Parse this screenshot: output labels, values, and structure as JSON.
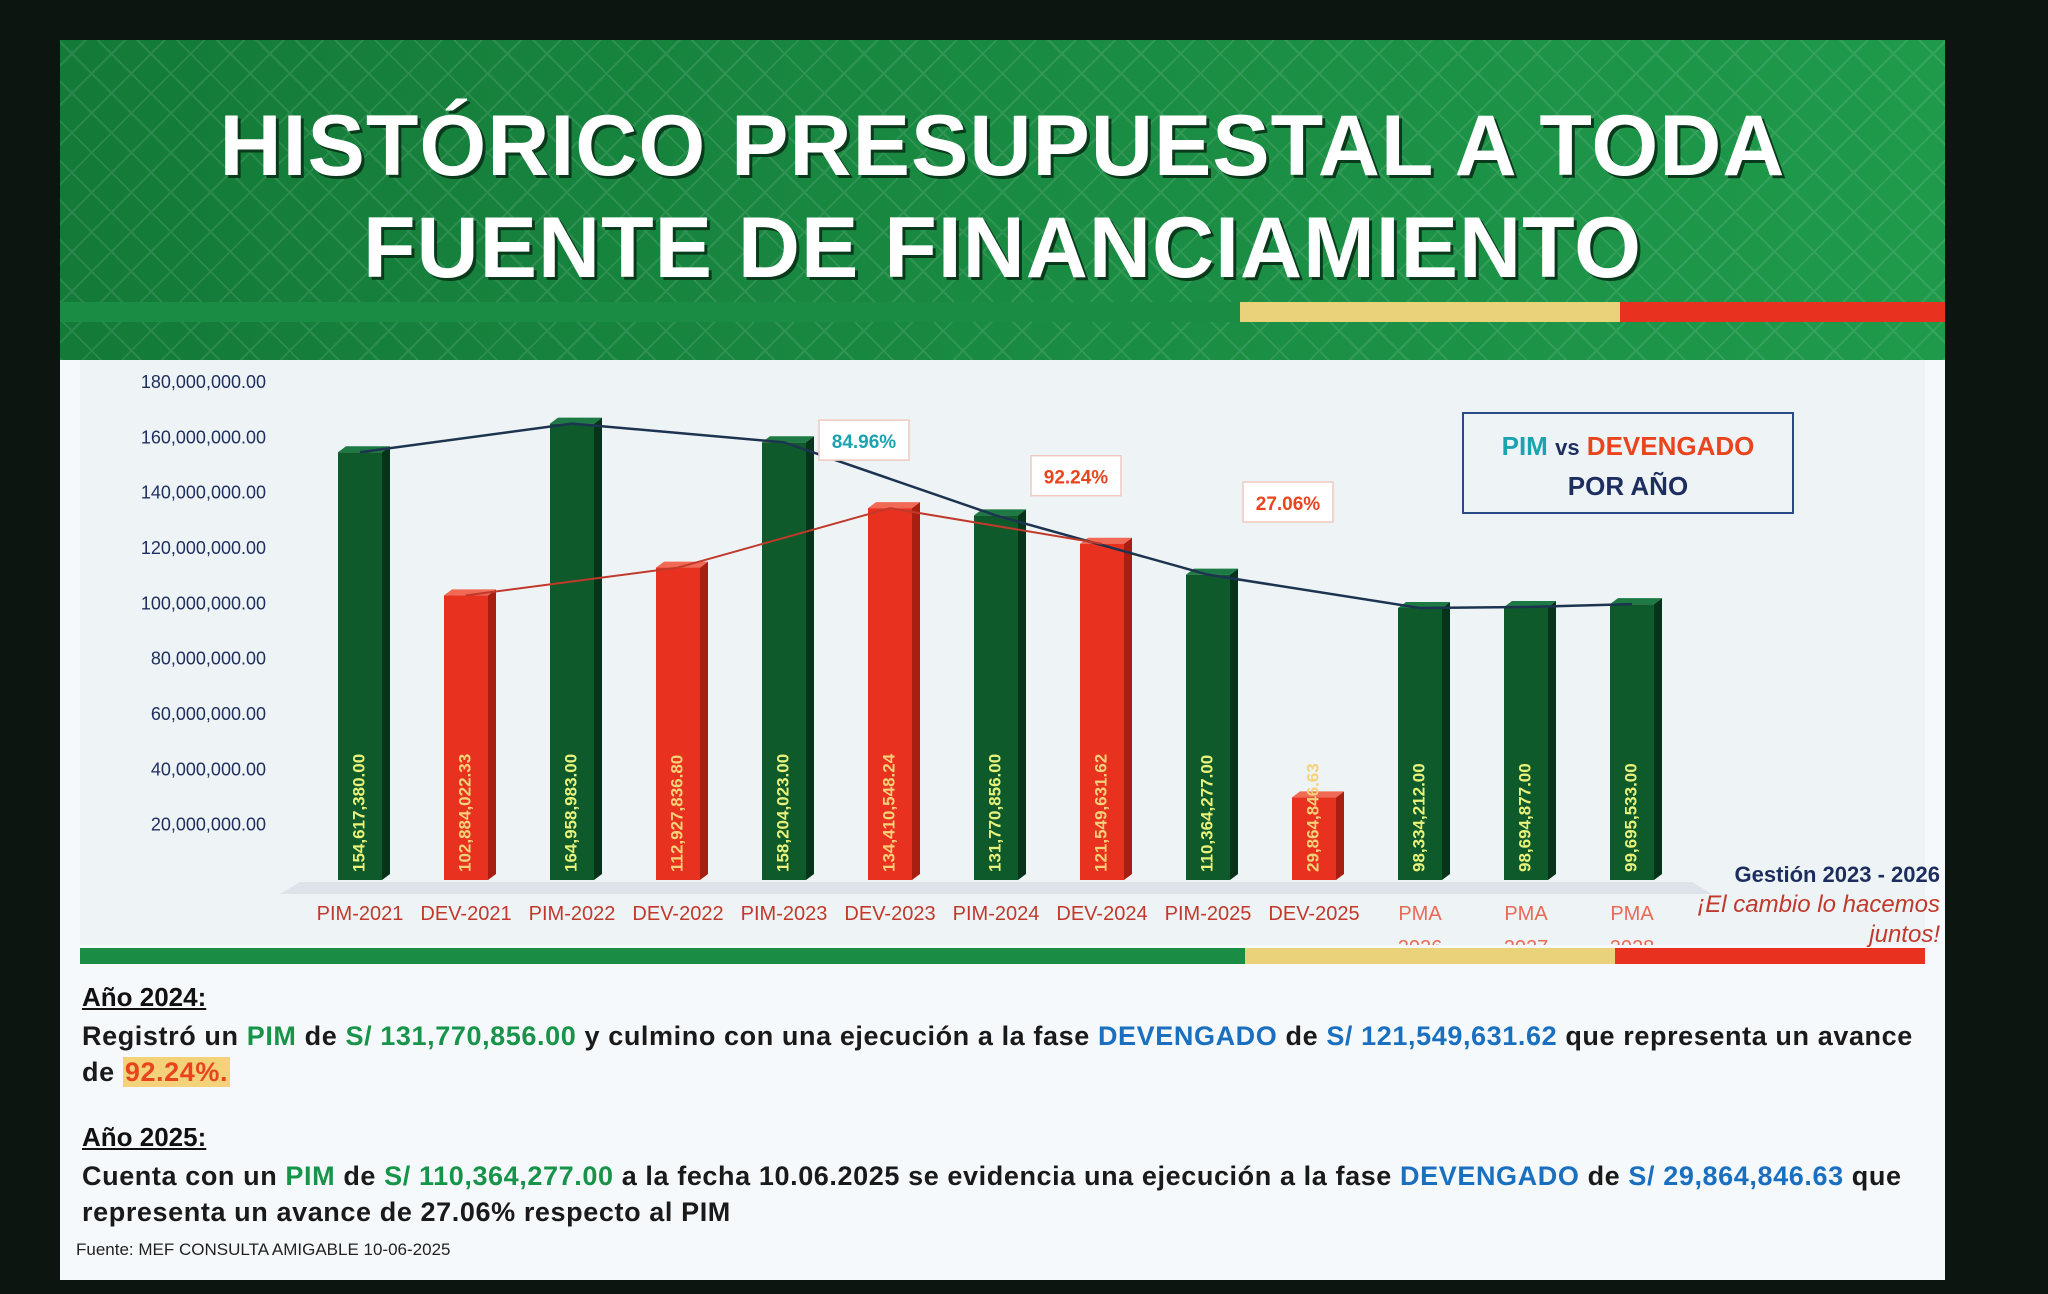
{
  "slide": {
    "title_line1": "HISTÓRICO PRESUPUESTAL A TODA",
    "title_line2": "FUENTE DE FINANCIAMIENTO",
    "colors": {
      "green": "#17944a",
      "dark_green": "#0f5a2a",
      "red": "#e8321f",
      "yellow": "#ead27a",
      "blue": "#1a6fbf"
    }
  },
  "legend": {
    "pim": "PIM",
    "vs": "vs",
    "devengado": "DEVENGADO",
    "line2": "POR AÑO"
  },
  "chart_data": {
    "type": "bar",
    "ylim": [
      0,
      180000000
    ],
    "y_ticks": [
      "",
      "20,000,000.00",
      "40,000,000.00",
      "60,000,000.00",
      "80,000,000.00",
      "100,000,000.00",
      "120,000,000.00",
      "140,000,000.00",
      "160,000,000.00",
      "180,000,000.00"
    ],
    "bars": [
      {
        "category": "PIM-2021",
        "value": 154617380.0,
        "label": "154,617,380.00",
        "kind": "PIM"
      },
      {
        "category": "DEV-2021",
        "value": 102884022.33,
        "label": "102,884,022.33",
        "kind": "DEV"
      },
      {
        "category": "PIM-2022",
        "value": 164958983.0,
        "label": "164,958,983.00",
        "kind": "PIM"
      },
      {
        "category": "DEV-2022",
        "value": 112927836.8,
        "label": "112,927,836.80",
        "kind": "DEV"
      },
      {
        "category": "PIM-2023",
        "value": 158204023.0,
        "label": "158,204,023.00",
        "kind": "PIM"
      },
      {
        "category": "DEV-2023",
        "value": 134410548.24,
        "label": "134,410,548.24",
        "kind": "DEV"
      },
      {
        "category": "PIM-2024",
        "value": 131770856.0,
        "label": "131,770,856.00",
        "kind": "PIM"
      },
      {
        "category": "DEV-2024",
        "value": 121549631.62,
        "label": "121,549,631.62",
        "kind": "DEV"
      },
      {
        "category": "PIM-2025",
        "value": 110364277.0,
        "label": "110,364,277.00",
        "kind": "PIM"
      },
      {
        "category": "DEV-2025",
        "value": 29864846.63,
        "label": "29,864,846.63",
        "kind": "DEV"
      },
      {
        "category": "PMA 2026",
        "value": 98334212.0,
        "label": "98,334,212.00",
        "kind": "PMA"
      },
      {
        "category": "PMA 2027",
        "value": 98694877.0,
        "label": "98,694,877.00",
        "kind": "PMA"
      },
      {
        "category": "PMA 2028",
        "value": 99695533.0,
        "label": "99,695,533.00",
        "kind": "PMA"
      }
    ],
    "x_labels": [
      [
        "PIM-2021"
      ],
      [
        "DEV-2021"
      ],
      [
        "PIM-2022"
      ],
      [
        "DEV-2022"
      ],
      [
        "PIM-2023"
      ],
      [
        "DEV-2023"
      ],
      [
        "PIM-2024"
      ],
      [
        "DEV-2024"
      ],
      [
        "PIM-2025"
      ],
      [
        "DEV-2025"
      ],
      [
        "PMA",
        "2026"
      ],
      [
        "PMA",
        "2027"
      ],
      [
        "PMA",
        "2028"
      ]
    ],
    "percent_callouts": [
      {
        "after": "DEV-2023",
        "text": "84.96%",
        "color": "#1ba3b0"
      },
      {
        "after": "DEV-2024",
        "text": "92.24%",
        "color": "#e8451f"
      },
      {
        "after": "DEV-2025",
        "text": "27.06%",
        "color": "#e8451f"
      }
    ],
    "trend_pim_values": [
      154617380.0,
      164958983.0,
      158204023.0,
      131770856.0,
      110364277.0,
      98334212.0,
      98694877.0,
      99695533.0
    ],
    "trend_dev_values": [
      102884022.33,
      112927836.8,
      134410548.24,
      121549631.62
    ]
  },
  "gestion": {
    "line1": "Gestión 2023 - 2026",
    "line2": "¡El cambio lo hacemos juntos!"
  },
  "notes": {
    "y2024": {
      "heading": "Año 2024:",
      "p1": "Registró un",
      "pim": "PIM",
      "p2": "de",
      "amount1": "S/ 131,770,856.00",
      "p3": "y culmino con una ejecución a la fase",
      "devengado": "DEVENGADO",
      "p4": "de",
      "amount2": "S/ 121,549,631.62",
      "p5": "que representa un avance de",
      "pct": "92.24%."
    },
    "y2025": {
      "heading": "Año 2025:",
      "p1": "Cuenta con un",
      "pim": "PIM",
      "p2": "de",
      "amount1": "S/ 110,364,277.00",
      "p3": "a la fecha 10.06.2025 se evidencia una ejecución a la fase",
      "devengado": "DEVENGADO",
      "p4": "de",
      "amount2": "S/ 29,864,846.63",
      "p5": "que representa un avance de 27.06%  respecto al PIM"
    },
    "source": "Fuente: MEF CONSULTA AMIGABLE 10-06-2025"
  }
}
